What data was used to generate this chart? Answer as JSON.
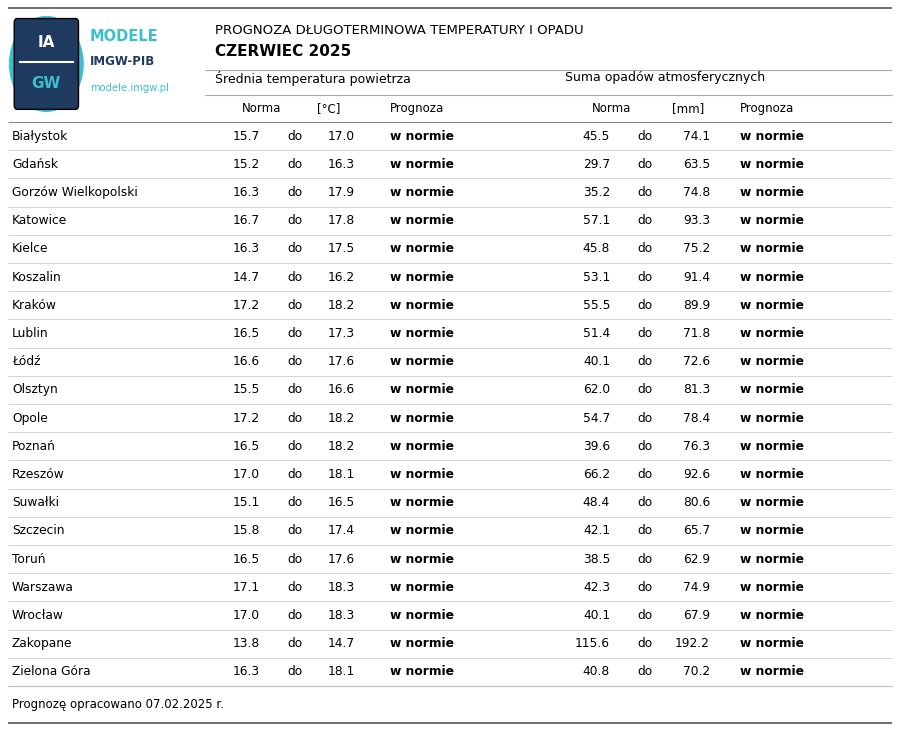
{
  "title_line1": "PROGNOZA DŁUGOTERMINOWA TEMPERATURY I OPADU",
  "title_line2": "CZERWIEC 2025",
  "section1_header": "Średnia temperatura powietrza",
  "section2_header": "Suma opadów atmosferycznych",
  "cities": [
    "Białystok",
    "Gdańsk",
    "Gorzów Wielkopolski",
    "Katowice",
    "Kielce",
    "Koszalin",
    "Kraków",
    "Lublin",
    "Łódź",
    "Olsztyn",
    "Opole",
    "Poznań",
    "Rzeszów",
    "Suwałki",
    "Szczecin",
    "Toruń",
    "Warszawa",
    "Wrocław",
    "Zakopane",
    "Zielona Góra"
  ],
  "temp_norma_low": [
    15.7,
    15.2,
    16.3,
    16.7,
    16.3,
    14.7,
    17.2,
    16.5,
    16.6,
    15.5,
    17.2,
    16.5,
    17.0,
    15.1,
    15.8,
    16.5,
    17.1,
    17.0,
    13.8,
    16.3
  ],
  "temp_norma_high": [
    17.0,
    16.3,
    17.9,
    17.8,
    17.5,
    16.2,
    18.2,
    17.3,
    17.6,
    16.6,
    18.2,
    18.2,
    18.1,
    16.5,
    17.4,
    17.6,
    18.3,
    18.3,
    14.7,
    18.1
  ],
  "temp_prognoza": [
    "w normie",
    "w normie",
    "w normie",
    "w normie",
    "w normie",
    "w normie",
    "w normie",
    "w normie",
    "w normie",
    "w normie",
    "w normie",
    "w normie",
    "w normie",
    "w normie",
    "w normie",
    "w normie",
    "w normie",
    "w normie",
    "w normie",
    "w normie"
  ],
  "precip_norma_low": [
    45.5,
    29.7,
    35.2,
    57.1,
    45.8,
    53.1,
    55.5,
    51.4,
    40.1,
    62.0,
    54.7,
    39.6,
    66.2,
    48.4,
    42.1,
    38.5,
    42.3,
    40.1,
    115.6,
    40.8
  ],
  "precip_norma_high": [
    74.1,
    63.5,
    74.8,
    93.3,
    75.2,
    91.4,
    89.9,
    71.8,
    72.6,
    81.3,
    78.4,
    76.3,
    92.6,
    80.6,
    65.7,
    62.9,
    74.9,
    67.9,
    192.2,
    70.2
  ],
  "precip_prognoza": [
    "w normie",
    "w normie",
    "w normie",
    "w normie",
    "w normie",
    "w normie",
    "w normie",
    "w normie",
    "w normie",
    "w normie",
    "w normie",
    "w normie",
    "w normie",
    "w normie",
    "w normie",
    "w normie",
    "w normie",
    "w normie",
    "w normie",
    "w normie"
  ],
  "footer": "Prognozę opracowano 07.02.2025 r.",
  "bg_color": "#ffffff",
  "text_color": "#000000",
  "line_color_dark": "#aaaaaa",
  "line_color_light": "#cccccc",
  "logo_teal": "#3bbfcf",
  "logo_dark": "#1e3a5f",
  "logo_text_teal": "#3bbfcf"
}
